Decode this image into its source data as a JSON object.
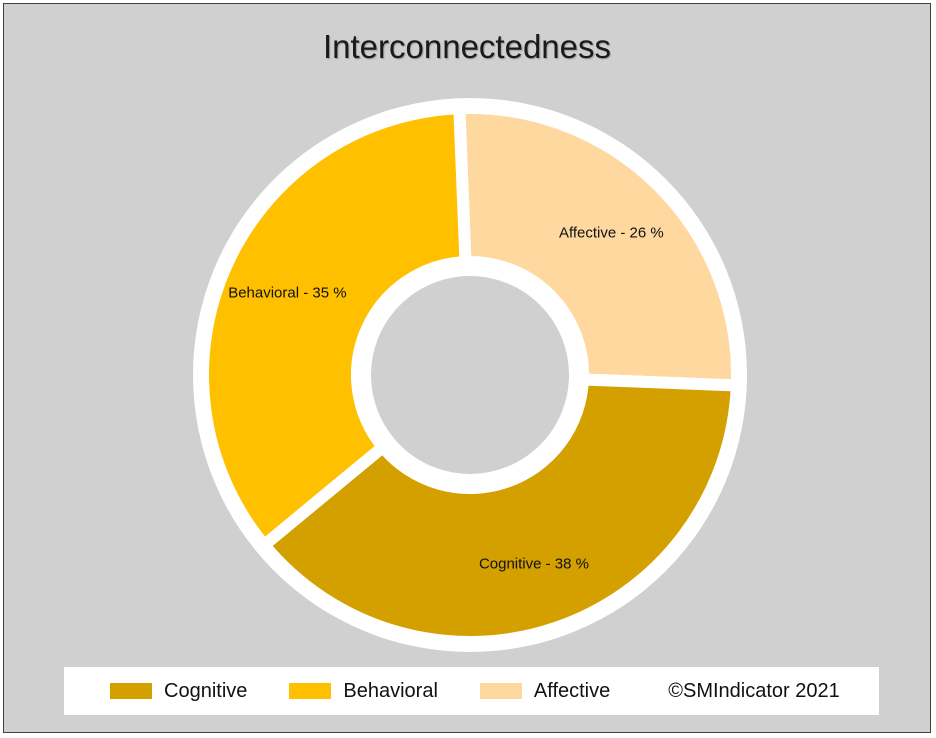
{
  "chart_data": {
    "type": "pie",
    "title": "Interconnectedness",
    "donut": true,
    "slices": [
      {
        "name": "Affective",
        "value": 26,
        "label": "Affective - 26 %",
        "color": "#ffd8a0"
      },
      {
        "name": "Cognitive",
        "value": 38,
        "label": "Cognitive - 38 %",
        "color": "#d4a000"
      },
      {
        "name": "Behavioral",
        "value": 35,
        "label": "Behavioral - 35 %",
        "color": "#ffc000"
      }
    ],
    "legend": [
      {
        "name": "Cognitive",
        "color": "#d4a000"
      },
      {
        "name": "Behavioral",
        "color": "#ffc000"
      },
      {
        "name": "Affective",
        "color": "#ffd8a0"
      }
    ],
    "legend_position": "bottom"
  },
  "footer": {
    "copyright": "©SMIndicator 2021"
  }
}
